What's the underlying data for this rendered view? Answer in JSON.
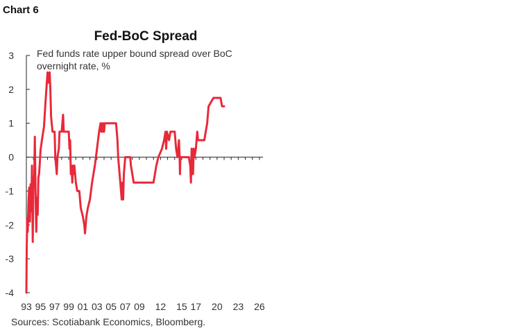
{
  "chart_number_label": "Chart 6",
  "source_note": "Sources: Scotiabank Economics, Bloomberg.",
  "chart_data": {
    "type": "line",
    "title": "Fed-BoC Spread",
    "subtitle": "Fed funds rate upper bound spread over BoC overnight rate, %",
    "xlabel": "",
    "ylabel": "",
    "xlim": [
      1993.0,
      2026.5
    ],
    "ylim": [
      -4,
      3
    ],
    "y_ticks": [
      3,
      2,
      1,
      0,
      -1,
      -2,
      -3,
      -4
    ],
    "x_ticks": [
      {
        "value": 1993,
        "label": "93"
      },
      {
        "value": 1995,
        "label": "95"
      },
      {
        "value": 1997,
        "label": "97"
      },
      {
        "value": 1999,
        "label": "99"
      },
      {
        "value": 2001,
        "label": "01"
      },
      {
        "value": 2003,
        "label": "03"
      },
      {
        "value": 2005,
        "label": "05"
      },
      {
        "value": 2007,
        "label": "07"
      },
      {
        "value": 2009,
        "label": "09"
      },
      {
        "value": 2012,
        "label": "12"
      },
      {
        "value": 2015,
        "label": "15"
      },
      {
        "value": 2017,
        "label": "17"
      },
      {
        "value": 2020,
        "label": "20"
      },
      {
        "value": 2023,
        "label": "23"
      },
      {
        "value": 2026,
        "label": "26"
      }
    ],
    "grid": false,
    "legend": "none",
    "series": [
      {
        "color": "#e8293a",
        "points": [
          [
            1993.0,
            -4.0
          ],
          [
            1993.05,
            -2.7
          ],
          [
            1993.12,
            -1.8
          ],
          [
            1993.2,
            -2.2
          ],
          [
            1993.3,
            -1.3
          ],
          [
            1993.4,
            -0.9
          ],
          [
            1993.5,
            -1.9
          ],
          [
            1993.6,
            -0.8
          ],
          [
            1993.7,
            -1.6
          ],
          [
            1993.8,
            -0.25
          ],
          [
            1993.9,
            -2.5
          ],
          [
            1994.0,
            -0.6
          ],
          [
            1994.1,
            -0.9
          ],
          [
            1994.2,
            0.6
          ],
          [
            1994.3,
            -1.0
          ],
          [
            1994.4,
            -2.2
          ],
          [
            1994.5,
            -1.2
          ],
          [
            1994.6,
            -1.7
          ],
          [
            1994.7,
            -0.6
          ],
          [
            1994.8,
            -0.5
          ],
          [
            1994.9,
            -0.2
          ],
          [
            1995.0,
            0.2
          ],
          [
            1995.2,
            0.5
          ],
          [
            1995.5,
            0.9
          ],
          [
            1995.7,
            1.6
          ],
          [
            1995.9,
            2.2
          ],
          [
            1996.0,
            2.5
          ],
          [
            1996.15,
            2.2
          ],
          [
            1996.3,
            2.5
          ],
          [
            1996.4,
            2.0
          ],
          [
            1996.5,
            1.2
          ],
          [
            1996.7,
            0.75
          ],
          [
            1997.0,
            0.75
          ],
          [
            1997.1,
            0.0
          ],
          [
            1997.2,
            -0.25
          ],
          [
            1997.3,
            -0.5
          ],
          [
            1997.4,
            0.0
          ],
          [
            1997.6,
            0.25
          ],
          [
            1997.7,
            0.75
          ],
          [
            1998.0,
            0.75
          ],
          [
            1998.2,
            1.25
          ],
          [
            1998.3,
            0.75
          ],
          [
            1999.0,
            0.75
          ],
          [
            1999.1,
            0.25
          ],
          [
            1999.2,
            0.5
          ],
          [
            1999.3,
            -0.5
          ],
          [
            1999.4,
            -0.25
          ],
          [
            1999.5,
            -0.75
          ],
          [
            1999.6,
            -0.25
          ],
          [
            1999.7,
            -0.5
          ],
          [
            1999.8,
            -0.25
          ],
          [
            2000.0,
            -0.75
          ],
          [
            2000.2,
            -1.0
          ],
          [
            2000.5,
            -1.0
          ],
          [
            2000.7,
            -1.5
          ],
          [
            2001.0,
            -1.75
          ],
          [
            2001.2,
            -2.0
          ],
          [
            2001.3,
            -2.25
          ],
          [
            2001.5,
            -1.75
          ],
          [
            2001.7,
            -1.5
          ],
          [
            2002.0,
            -1.25
          ],
          [
            2002.3,
            -0.75
          ],
          [
            2002.7,
            -0.25
          ],
          [
            2003.0,
            0.25
          ],
          [
            2003.3,
            0.75
          ],
          [
            2003.5,
            1.0
          ],
          [
            2003.6,
            0.75
          ],
          [
            2003.7,
            1.0
          ],
          [
            2003.8,
            0.75
          ],
          [
            2003.9,
            1.0
          ],
          [
            2004.0,
            0.75
          ],
          [
            2004.1,
            1.0
          ],
          [
            2005.7,
            1.0
          ],
          [
            2005.9,
            0.5
          ],
          [
            2006.0,
            0.0
          ],
          [
            2006.3,
            -0.75
          ],
          [
            2006.5,
            -1.25
          ],
          [
            2006.6,
            -0.75
          ],
          [
            2006.7,
            -1.25
          ],
          [
            2006.8,
            -0.5
          ],
          [
            2006.9,
            -0.25
          ],
          [
            2007.0,
            0.0
          ],
          [
            2007.7,
            0.0
          ],
          [
            2007.8,
            -0.25
          ],
          [
            2008.0,
            -0.5
          ],
          [
            2008.2,
            -0.75
          ],
          [
            2011.0,
            -0.75
          ],
          [
            2011.2,
            -0.5
          ],
          [
            2011.4,
            -0.25
          ],
          [
            2011.7,
            0.0
          ],
          [
            2012.2,
            0.25
          ],
          [
            2012.5,
            0.5
          ],
          [
            2012.7,
            0.75
          ],
          [
            2012.8,
            0.25
          ],
          [
            2012.9,
            0.75
          ],
          [
            2013.2,
            0.5
          ],
          [
            2013.4,
            0.75
          ],
          [
            2014.0,
            0.75
          ],
          [
            2014.2,
            0.25
          ],
          [
            2014.4,
            0.0
          ],
          [
            2014.6,
            0.5
          ],
          [
            2014.7,
            0.0
          ],
          [
            2014.75,
            -0.5
          ],
          [
            2014.8,
            0.0
          ],
          [
            2016.0,
            0.0
          ],
          [
            2016.2,
            -0.25
          ],
          [
            2016.3,
            -0.75
          ],
          [
            2016.4,
            0.25
          ],
          [
            2016.5,
            -0.25
          ],
          [
            2016.6,
            -0.5
          ],
          [
            2016.7,
            0.25
          ],
          [
            2016.8,
            0.0
          ],
          [
            2017.0,
            0.25
          ],
          [
            2017.2,
            0.75
          ],
          [
            2017.3,
            0.5
          ],
          [
            2018.2,
            0.5
          ],
          [
            2018.4,
            0.75
          ],
          [
            2018.6,
            1.0
          ],
          [
            2018.8,
            1.5
          ],
          [
            2019.5,
            1.75
          ],
          [
            2020.5,
            1.75
          ],
          [
            2020.7,
            1.5
          ],
          [
            2021.0,
            1.5
          ]
        ]
      }
    ]
  }
}
